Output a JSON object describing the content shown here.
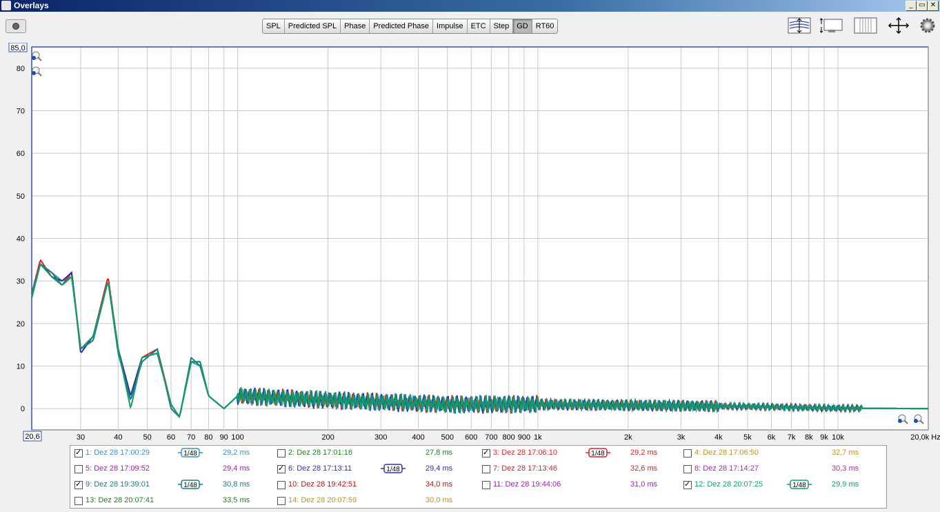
{
  "window": {
    "title": "Overlays",
    "controls": [
      "_",
      "▭",
      "✕"
    ]
  },
  "tabs": [
    {
      "label": "SPL",
      "active": false
    },
    {
      "label": "Predicted SPL",
      "active": false
    },
    {
      "label": "Phase",
      "active": false
    },
    {
      "label": "Predicted Phase",
      "active": false
    },
    {
      "label": "Impulse",
      "active": false
    },
    {
      "label": "ETC",
      "active": false
    },
    {
      "label": "Step",
      "active": false
    },
    {
      "label": "GD",
      "active": true
    },
    {
      "label": "RT60",
      "active": false
    }
  ],
  "toolbar_icons": [
    "vertical-fit-icon",
    "vertical-scale-icon",
    "horizontal-scale-icon",
    "fit-all-icon",
    "settings-gear-icon"
  ],
  "plot": {
    "unit_label": "ms",
    "y_top_value": "85,0",
    "x_left_value": "20,6",
    "x_unit": "Hz",
    "y_ticks": [
      "80",
      "70",
      "60",
      "50",
      "40",
      "30",
      "20",
      "10",
      "0"
    ],
    "x_ticks": [
      "30",
      "40",
      "50",
      "60",
      "70",
      "80",
      "90",
      "100",
      "200",
      "300",
      "400",
      "500",
      "600",
      "700",
      "800",
      "900",
      "1k",
      "2k",
      "3k",
      "4k",
      "5k",
      "6k",
      "7k",
      "8k",
      "9k",
      "10k",
      "20,0k"
    ]
  },
  "chart_data": {
    "type": "line",
    "xlabel": "Hz",
    "ylabel": "ms",
    "xscale": "log",
    "xlim": [
      20.6,
      20000
    ],
    "ylim": [
      -5,
      85
    ],
    "grid": true,
    "series": [
      {
        "name": "1: Dez 28 17:00:29",
        "color": "#3a8fc9",
        "x": [
          20.6,
          22,
          24,
          26,
          28,
          30,
          33,
          37,
          40,
          44,
          48,
          54,
          60,
          64,
          70,
          75,
          80,
          90,
          100,
          200,
          500,
          1000,
          2000,
          5000,
          10000,
          20000
        ],
        "y": [
          26,
          34,
          32,
          30,
          31,
          14,
          17,
          30,
          13,
          2,
          12,
          13,
          1,
          -2,
          11,
          10,
          3,
          0,
          3,
          2,
          1,
          1,
          0.8,
          0.5,
          0.1,
          0
        ]
      },
      {
        "name": "3: Dez 28 17:06:10",
        "color": "#e02020",
        "x": [
          20.6,
          22,
          24,
          26,
          28,
          30,
          33,
          37,
          40,
          44,
          48,
          54,
          60,
          64,
          70,
          75,
          80,
          90,
          100,
          200,
          500,
          1000,
          2000,
          5000,
          10000,
          20000
        ],
        "y": [
          27,
          35,
          31,
          29,
          32,
          14,
          17,
          31,
          14,
          3,
          12,
          14,
          1,
          -2,
          11,
          11,
          3,
          0,
          3,
          2,
          1,
          1,
          0.8,
          0.5,
          0.1,
          0
        ]
      },
      {
        "name": "6: Dez 28 17:13:11",
        "color": "#3030b0",
        "x": [
          20.6,
          22,
          24,
          26,
          28,
          30,
          33,
          37,
          40,
          44,
          48,
          54,
          60,
          64,
          70,
          75,
          80,
          90,
          100,
          200,
          500,
          1000,
          2000,
          5000,
          10000,
          20000
        ],
        "y": [
          26,
          34,
          31,
          30,
          32,
          13,
          17,
          30,
          14,
          3,
          12,
          13,
          1,
          -2,
          11,
          11,
          3,
          0,
          3,
          2,
          1,
          1,
          0.8,
          0.5,
          0.1,
          0
        ]
      },
      {
        "name": "9: Dez 28 19:39:01",
        "color": "#1a7a8a",
        "x": [
          20.6,
          22,
          24,
          26,
          28,
          30,
          33,
          37,
          40,
          44,
          48,
          54,
          60,
          64,
          70,
          75,
          80,
          90,
          100,
          200,
          500,
          1000,
          2000,
          5000,
          10000,
          20000
        ],
        "y": [
          27,
          34,
          32,
          29,
          31,
          14,
          16,
          30,
          13,
          2,
          11,
          14,
          0,
          -2,
          12,
          10,
          3,
          0,
          3,
          2,
          1,
          1,
          0.8,
          0.5,
          0.1,
          0
        ]
      },
      {
        "name": "12: Dez 28 20:07:25",
        "color": "#10a060",
        "x": [
          20.6,
          22,
          24,
          26,
          28,
          30,
          33,
          37,
          40,
          44,
          48,
          54,
          60,
          64,
          70,
          75,
          80,
          90,
          100,
          200,
          500,
          1000,
          2000,
          5000,
          10000,
          20000
        ],
        "y": [
          26,
          34,
          31,
          29,
          31,
          14,
          17,
          30,
          14,
          0,
          12,
          13,
          1,
          -2,
          11,
          11,
          3,
          0,
          3,
          2,
          1,
          1,
          0.8,
          0.5,
          0.1,
          0
        ]
      }
    ]
  },
  "legend": [
    {
      "id": "1",
      "label": "1: Dez 28 17:00:29",
      "value": "29,2 ms",
      "checked": true,
      "smoothing": "1/48",
      "color": "#3a8fc9"
    },
    {
      "id": "2",
      "label": "2: Dez 28 17:01:16",
      "value": "27,8 ms",
      "checked": false,
      "smoothing": "",
      "color": "#208020"
    },
    {
      "id": "3",
      "label": "3: Dez 28 17:06:10",
      "value": "29,2 ms",
      "checked": true,
      "smoothing": "1/48",
      "color": "#e02020"
    },
    {
      "id": "4",
      "label": "4: Dez 28 17:06:50",
      "value": "32,7 ms",
      "checked": false,
      "smoothing": "",
      "color": "#c09020"
    },
    {
      "id": "5",
      "label": "5: Dez 28 17:09:52",
      "value": "29,4 ms",
      "checked": false,
      "smoothing": "",
      "color": "#a020a0"
    },
    {
      "id": "6",
      "label": "6: Dez 28 17:13:11",
      "value": "29,4 ms",
      "checked": true,
      "smoothing": "1/48",
      "color": "#3030b0"
    },
    {
      "id": "7",
      "label": "7: Dez 28 17:13:46",
      "value": "32,6 ms",
      "checked": false,
      "smoothing": "",
      "color": "#b03030"
    },
    {
      "id": "8",
      "label": "8: Dez 28 17:14:27",
      "value": "30,3 ms",
      "checked": false,
      "smoothing": "",
      "color": "#a030a0"
    },
    {
      "id": "9",
      "label": "9: Dez 28 19:39:01",
      "value": "30,8 ms",
      "checked": true,
      "smoothing": "1/48",
      "color": "#1a7a8a"
    },
    {
      "id": "10",
      "label": "10: Dez 28 19:42:51",
      "value": "34,0 ms",
      "checked": false,
      "smoothing": "",
      "color": "#c01010"
    },
    {
      "id": "11",
      "label": "11: Dez 28 19:44:06",
      "value": "31,0 ms",
      "checked": false,
      "smoothing": "",
      "color": "#a020b0"
    },
    {
      "id": "12",
      "label": "12: Dez 28 20:07:25",
      "value": "29,9 ms",
      "checked": true,
      "smoothing": "1/48",
      "color": "#10a060"
    },
    {
      "id": "13",
      "label": "13: Dez 28 20:07:41",
      "value": "33,5 ms",
      "checked": false,
      "smoothing": "",
      "color": "#208020"
    },
    {
      "id": "14",
      "label": "14: Dez 28 20:07:59",
      "value": "30,0 ms",
      "checked": false,
      "smoothing": "",
      "color": "#c09020"
    }
  ]
}
